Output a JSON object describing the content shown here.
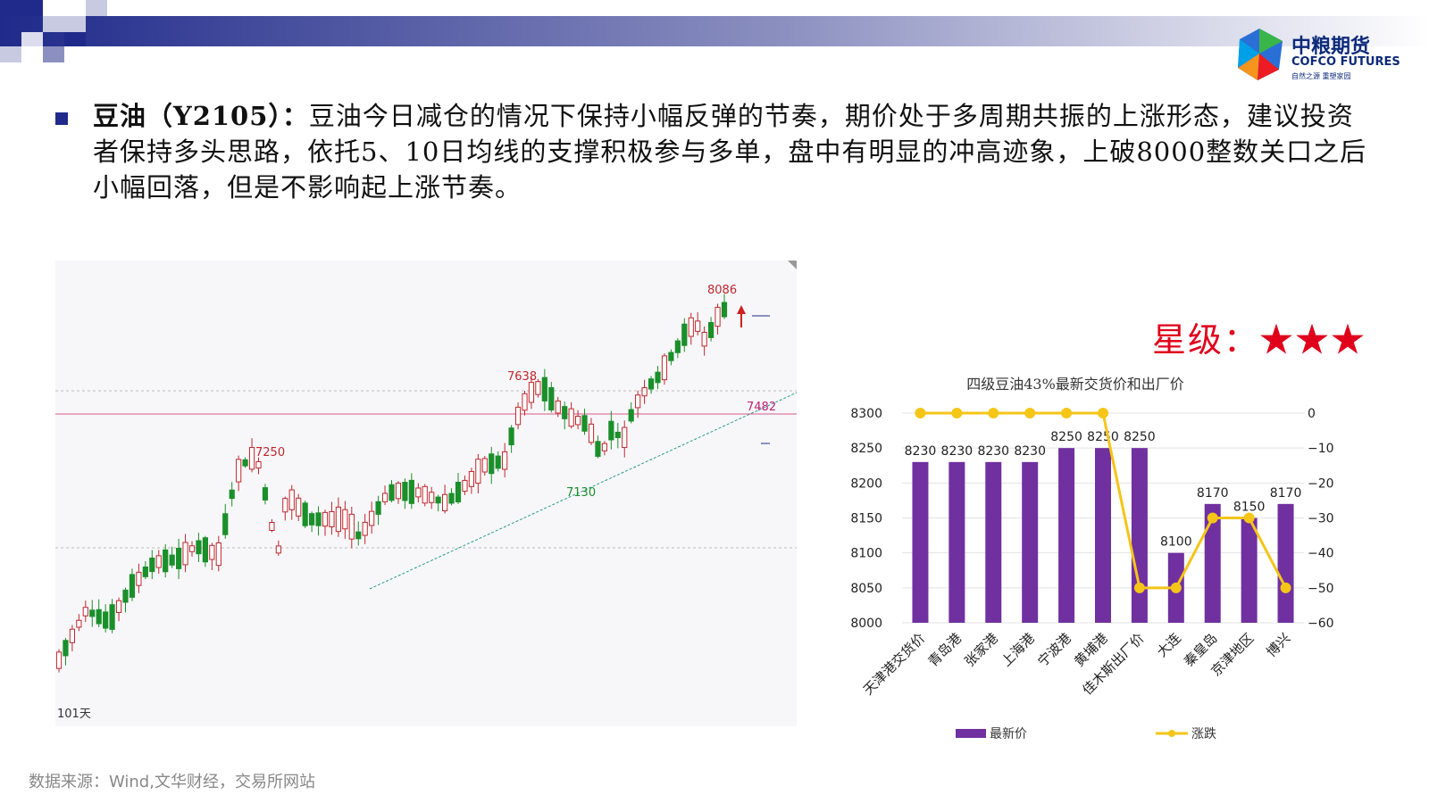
{
  "header": {
    "logo_cn": "中粮期货",
    "logo_en": "COFCO FUTURES",
    "logo_slogan": "自然之源  重塑家园",
    "colors": {
      "bar_dark": "#1f2a8a",
      "logo_blue": "#1565c0",
      "logo_text": "#0d2a7a"
    }
  },
  "commentary": {
    "label": "豆油（Y2105）：",
    "text": "豆油今日减仓的情况下保持小幅反弹的节奏，期价处于多周期共振的上涨形态，建议投资者保持多头思路，依托5、10日均线的支撑积极参与多单，盘中有明显的冲高迹象，上破8000整数关口之后小幅回落，但是不影响起上涨节奏。"
  },
  "rating": {
    "label": "星级：",
    "stars": "★★★"
  },
  "source": "数据来源：Wind,文华财经，交易所网站",
  "kline_chart": {
    "annotations": {
      "high_1": "7250",
      "high_2": "7638",
      "high_3": "8086",
      "low_1": "7130",
      "level": "7482",
      "period": "101天"
    },
    "colors": {
      "up": "#c0272d",
      "down": "#1a8f2a",
      "trend": "#2a9a8a",
      "level_line": "#e07aa0",
      "level_text": "#c0207a"
    }
  },
  "chart_data": {
    "type": "bar",
    "title": "四级豆油43%最新交货价和出厂价",
    "categories": [
      "天津港交货价",
      "青岛港",
      "张家港",
      "上海港",
      "宁波港",
      "黄埔港",
      "佳木斯出厂价",
      "大连",
      "秦皇岛",
      "京津地区",
      "博兴"
    ],
    "series": [
      {
        "name": "最新价",
        "type": "bar",
        "axis": "left",
        "color": "#7030a0",
        "values": [
          8230,
          8230,
          8230,
          8230,
          8250,
          8250,
          8250,
          8100,
          8170,
          8150,
          8170
        ]
      },
      {
        "name": "涨跌",
        "type": "line",
        "axis": "right",
        "color": "#f5c518",
        "values": [
          0,
          0,
          0,
          0,
          0,
          0,
          -50,
          -50,
          -30,
          -30,
          -50
        ]
      }
    ],
    "ylim": [
      8000,
      8300
    ],
    "yticks": [
      8000,
      8050,
      8100,
      8150,
      8200,
      8250,
      8300
    ],
    "y2lim": [
      -60,
      0
    ],
    "y2ticks": [
      -60,
      -50,
      -40,
      -30,
      -20,
      -10,
      0
    ],
    "legend": "bottom"
  }
}
